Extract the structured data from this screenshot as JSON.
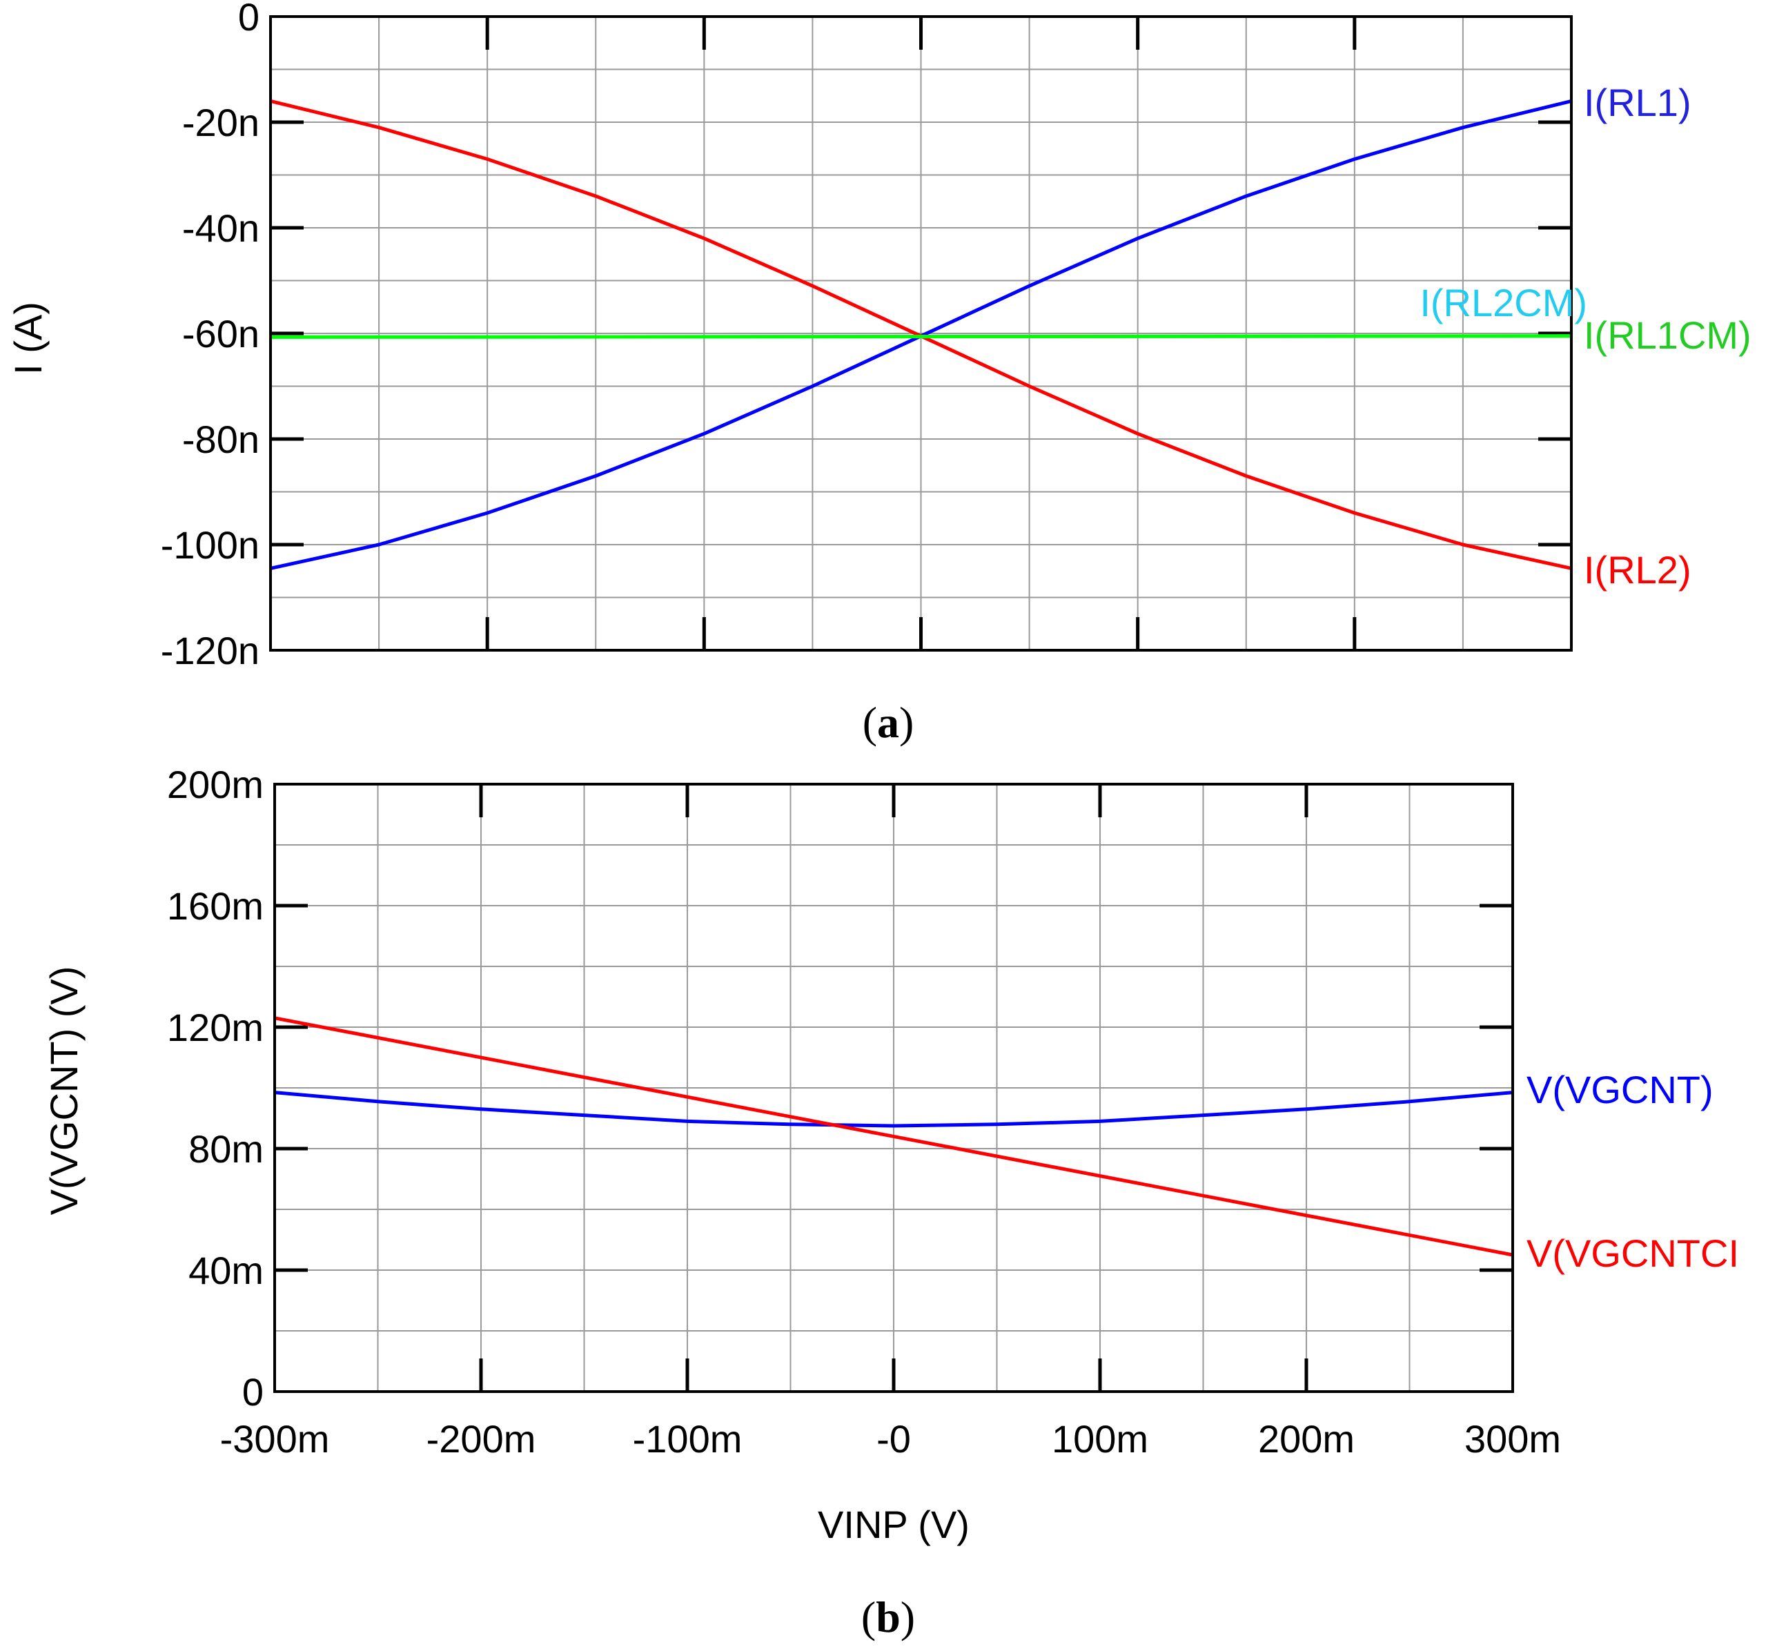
{
  "chart_data": [
    {
      "type": "line",
      "panel": "a",
      "caption_letter": "a",
      "ylabel": "I  (A)",
      "xlabel": "",
      "xlim": [
        -300,
        300
      ],
      "ylim": [
        -120,
        0
      ],
      "x_gridlines": [
        -300,
        -250,
        -200,
        -150,
        -100,
        -50,
        0,
        50,
        100,
        150,
        200,
        250,
        300
      ],
      "y_gridlines": [
        -120,
        -110,
        -100,
        -90,
        -80,
        -70,
        -60,
        -50,
        -40,
        -30,
        -20,
        -10,
        0
      ],
      "major_x_ticks": [
        -200,
        -100,
        0,
        100,
        200
      ],
      "y_ticks": [
        0,
        -20,
        -40,
        -60,
        -80,
        -100,
        -120
      ],
      "y_tick_labels": [
        "0",
        "-20n",
        "-40n",
        "-60n",
        "-80n",
        "-100n",
        "-120n"
      ],
      "series": [
        {
          "name": "I(RL1)",
          "color": "#0000ff",
          "label_color": "#2222dd",
          "x": [
            -300,
            -250,
            -200,
            -150,
            -100,
            -50,
            0,
            50,
            100,
            150,
            200,
            250,
            300
          ],
          "y": [
            -104.5,
            -100,
            -94,
            -87,
            -79,
            -70,
            -60.5,
            -51,
            -42,
            -34,
            -27,
            -21,
            -16
          ]
        },
        {
          "name": "I(RL2)",
          "color": "#ff0000",
          "label_color": "#ff0000",
          "x": [
            -300,
            -250,
            -200,
            -150,
            -100,
            -50,
            0,
            50,
            100,
            150,
            200,
            250,
            300
          ],
          "y": [
            -16,
            -21,
            -27,
            -34,
            -42,
            -51,
            -60.5,
            -70,
            -79,
            -87,
            -94,
            -100,
            -104.5
          ]
        },
        {
          "name": "I(RL2CM)",
          "color": "#00ffff",
          "label_color": "#22ccee",
          "x": [
            -300,
            300
          ],
          "y": [
            -60.7,
            -60.5
          ]
        },
        {
          "name": "I(RL1CM)",
          "color": "#00ff00",
          "label_color": "#22cc22",
          "x": [
            -300,
            300
          ],
          "y": [
            -60.7,
            -60.5
          ]
        }
      ]
    },
    {
      "type": "line",
      "panel": "b",
      "caption_letter": "b",
      "ylabel": "V(VGCNT)  (V)",
      "xlabel": "VINP  (V)",
      "xlim": [
        -300,
        300
      ],
      "ylim": [
        0,
        200
      ],
      "x_gridlines": [
        -300,
        -250,
        -200,
        -150,
        -100,
        -50,
        0,
        50,
        100,
        150,
        200,
        250,
        300
      ],
      "y_gridlines": [
        0,
        20,
        40,
        60,
        80,
        100,
        120,
        140,
        160,
        180,
        200
      ],
      "major_x_ticks": [
        -200,
        -100,
        0,
        100,
        200
      ],
      "x_tick_labels": [
        "-300m",
        "-200m",
        "-100m",
        "-0",
        "100m",
        "200m",
        "300m"
      ],
      "y_ticks": [
        200,
        160,
        120,
        80,
        40,
        0
      ],
      "y_tick_labels": [
        "200m",
        "160m",
        "120m",
        "80m",
        "40m",
        "0"
      ],
      "series": [
        {
          "name": "V(VGCNT)",
          "color": "#0000ff",
          "label_color": "#0000ff",
          "x": [
            -300,
            -250,
            -200,
            -150,
            -100,
            -50,
            0,
            50,
            100,
            150,
            200,
            250,
            300
          ],
          "y": [
            98.5,
            95.5,
            93,
            91,
            89,
            88,
            87.5,
            88,
            89,
            91,
            93,
            95.5,
            98.5
          ]
        },
        {
          "name": "V(VGCNTCI",
          "color": "#ff0000",
          "label_color": "#ff0000",
          "x": [
            -300,
            300
          ],
          "y": [
            123,
            45
          ]
        }
      ]
    }
  ]
}
